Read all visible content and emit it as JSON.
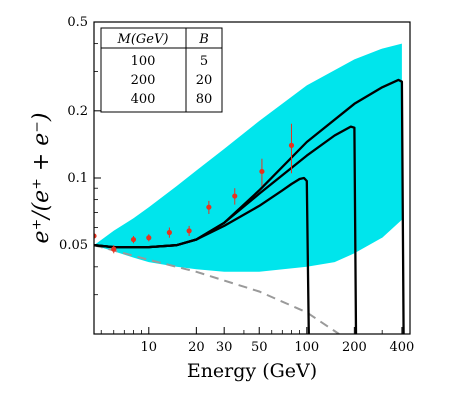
{
  "chart_data": {
    "type": "line",
    "xlabel": "Energy (GeV)",
    "ylabel": "e⁺/(e⁺ + e⁻)",
    "x_scale": "log",
    "y_scale": "log",
    "xlim": [
      4.5,
      450
    ],
    "ylim": [
      0.02,
      0.5
    ],
    "x_ticks": [
      10,
      20,
      30,
      50,
      100,
      200,
      400
    ],
    "x_tick_labels": [
      "10",
      "20",
      "30",
      "50",
      "100",
      "200",
      "400"
    ],
    "y_ticks": [
      0.05,
      0.1,
      0.2,
      0.5
    ],
    "y_tick_labels": [
      "0.05",
      "0.1",
      "0.2",
      "0.5"
    ],
    "colors": {
      "band": "#00e5ec",
      "curve": "#000000",
      "background_line": "#9a9a9a",
      "points": "#e8321e"
    },
    "legend_table": {
      "headers": [
        "M(GeV)",
        "B"
      ],
      "rows": [
        [
          "100",
          "5"
        ],
        [
          "200",
          "20"
        ],
        [
          "400",
          "80"
        ]
      ],
      "placement": "top-left"
    },
    "band": {
      "upper": [
        [
          4.5,
          0.05
        ],
        [
          6,
          0.058
        ],
        [
          8,
          0.066
        ],
        [
          10,
          0.074
        ],
        [
          15,
          0.092
        ],
        [
          20,
          0.108
        ],
        [
          30,
          0.135
        ],
        [
          50,
          0.18
        ],
        [
          100,
          0.26
        ],
        [
          200,
          0.34
        ],
        [
          300,
          0.38
        ],
        [
          400,
          0.4
        ]
      ],
      "lower": [
        [
          4.5,
          0.05
        ],
        [
          6,
          0.047
        ],
        [
          8,
          0.044
        ],
        [
          10,
          0.042
        ],
        [
          15,
          0.04
        ],
        [
          20,
          0.039
        ],
        [
          30,
          0.038
        ],
        [
          50,
          0.038
        ],
        [
          100,
          0.04
        ],
        [
          150,
          0.042
        ],
        [
          200,
          0.046
        ],
        [
          300,
          0.054
        ],
        [
          400,
          0.065
        ]
      ]
    },
    "background_curve": [
      [
        4.5,
        0.05
      ],
      [
        10,
        0.043
      ],
      [
        20,
        0.038
      ],
      [
        50,
        0.031
      ],
      [
        100,
        0.025
      ],
      [
        160,
        0.02
      ]
    ],
    "series": [
      {
        "M": "100",
        "B": "5",
        "values": [
          [
            4.5,
            0.05
          ],
          [
            6,
            0.049
          ],
          [
            10,
            0.049
          ],
          [
            15,
            0.05
          ],
          [
            20,
            0.053
          ],
          [
            30,
            0.061
          ],
          [
            50,
            0.075
          ],
          [
            70,
            0.088
          ],
          [
            80,
            0.094
          ],
          [
            90,
            0.099
          ],
          [
            96,
            0.1
          ],
          [
            100,
            0.097
          ],
          [
            103,
            0.02
          ]
        ]
      },
      {
        "M": "200",
        "B": "20",
        "values": [
          [
            4.5,
            0.05
          ],
          [
            6,
            0.049
          ],
          [
            10,
            0.049
          ],
          [
            15,
            0.05
          ],
          [
            20,
            0.053
          ],
          [
            30,
            0.063
          ],
          [
            50,
            0.085
          ],
          [
            100,
            0.126
          ],
          [
            150,
            0.155
          ],
          [
            190,
            0.17
          ],
          [
            200,
            0.168
          ],
          [
            205,
            0.02
          ]
        ]
      },
      {
        "M": "400",
        "B": "80",
        "values": [
          [
            4.5,
            0.05
          ],
          [
            6,
            0.049
          ],
          [
            10,
            0.049
          ],
          [
            15,
            0.05
          ],
          [
            20,
            0.053
          ],
          [
            30,
            0.063
          ],
          [
            50,
            0.088
          ],
          [
            100,
            0.145
          ],
          [
            200,
            0.215
          ],
          [
            300,
            0.255
          ],
          [
            380,
            0.275
          ],
          [
            400,
            0.27
          ],
          [
            410,
            0.02
          ]
        ]
      }
    ],
    "data_points": [
      {
        "x": 4.5,
        "y": 0.055,
        "err": 0.002
      },
      {
        "x": 6,
        "y": 0.048,
        "err": 0.002
      },
      {
        "x": 8,
        "y": 0.053,
        "err": 0.002
      },
      {
        "x": 10,
        "y": 0.054,
        "err": 0.002
      },
      {
        "x": 13.5,
        "y": 0.057,
        "err": 0.003
      },
      {
        "x": 18,
        "y": 0.058,
        "err": 0.003
      },
      {
        "x": 24,
        "y": 0.074,
        "err": 0.005
      },
      {
        "x": 35,
        "y": 0.083,
        "err": 0.007
      },
      {
        "x": 52,
        "y": 0.107,
        "err": 0.015
      },
      {
        "x": 80,
        "y": 0.14,
        "err": 0.035
      }
    ]
  }
}
